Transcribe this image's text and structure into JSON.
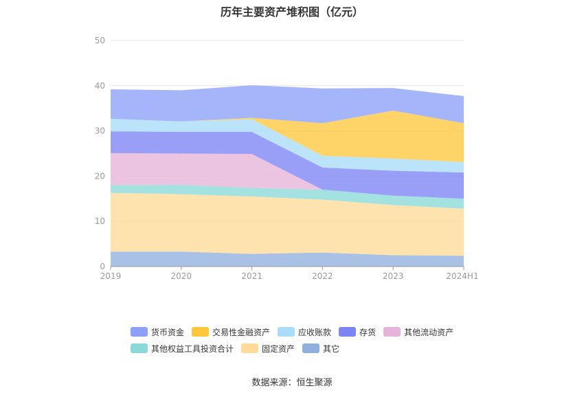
{
  "chart_data": {
    "type": "area",
    "stacked": true,
    "title": "历年主要资产堆积图（亿元）",
    "x": [
      "2019",
      "2020",
      "2021",
      "2022",
      "2023",
      "2024H1"
    ],
    "ylim": [
      0,
      50
    ],
    "yticks": [
      0,
      10,
      20,
      30,
      40,
      50
    ],
    "grid": true,
    "legend_position": "bottom",
    "series": [
      {
        "name": "其它",
        "color": "#8fb0dc",
        "values": [
          3.3,
          3.3,
          2.8,
          3.1,
          2.5,
          2.4
        ]
      },
      {
        "name": "固定资产",
        "color": "#ffdb99",
        "values": [
          13.0,
          12.7,
          12.7,
          11.7,
          11.1,
          10.4
        ]
      },
      {
        "name": "其他权益工具投资合计",
        "color": "#8ad8d8",
        "values": [
          1.7,
          2.1,
          1.9,
          2.2,
          2.1,
          2.2
        ]
      },
      {
        "name": "其他流动资产",
        "color": "#e5b4d8",
        "values": [
          7.1,
          6.9,
          7.5,
          0.0,
          0.0,
          0.0
        ]
      },
      {
        "name": "存货",
        "color": "#7c84f4",
        "values": [
          4.8,
          4.8,
          4.9,
          4.9,
          5.5,
          5.8
        ]
      },
      {
        "name": "应收账款",
        "color": "#a8dcf8",
        "values": [
          2.8,
          2.3,
          2.8,
          2.6,
          2.7,
          2.3
        ]
      },
      {
        "name": "交易性金融资产",
        "color": "#fec73c",
        "values": [
          0.0,
          0.0,
          0.3,
          7.2,
          10.6,
          8.6
        ]
      },
      {
        "name": "货币资金",
        "color": "#8ca0f8",
        "values": [
          6.5,
          6.9,
          7.2,
          7.7,
          5.0,
          6.0
        ]
      }
    ],
    "legend_order": [
      "货币资金",
      "交易性金融资产",
      "应收账款",
      "存货",
      "其他流动资产",
      "其他权益工具投资合计",
      "固定资产",
      "其它"
    ]
  },
  "source_label": "数据来源：恒生聚源"
}
